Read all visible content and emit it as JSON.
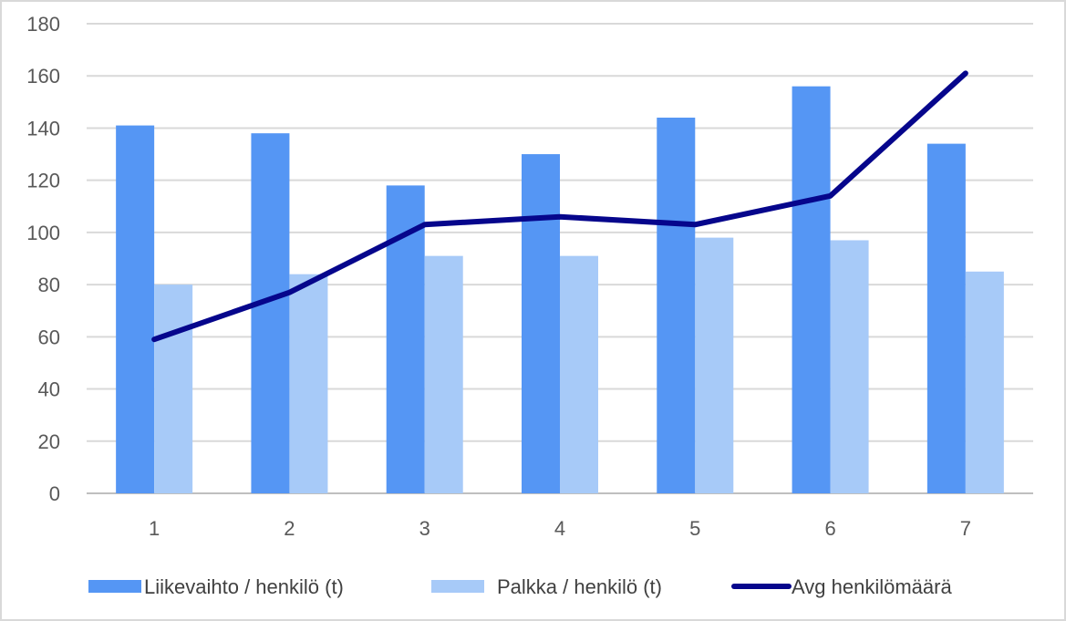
{
  "chart_data": {
    "type": "bar",
    "title": "",
    "xlabel": "",
    "ylabel": "",
    "categories": [
      "1",
      "2",
      "3",
      "4",
      "5",
      "6",
      "7"
    ],
    "ylim": [
      0,
      180
    ],
    "yticks": [
      0,
      20,
      40,
      60,
      80,
      100,
      120,
      140,
      160,
      180
    ],
    "grid": true,
    "legend_position": "bottom",
    "series": [
      {
        "name": "Liikevaihto / henkilö (t)",
        "type": "bar",
        "color": "#5596f4",
        "values": [
          141,
          138,
          118,
          130,
          144,
          156,
          134
        ]
      },
      {
        "name": "Palkka / henkilö (t)",
        "type": "bar",
        "color": "#a7caf8",
        "values": [
          80,
          84,
          91,
          91,
          98,
          97,
          85
        ]
      },
      {
        "name": "Avg henkilömäärä",
        "type": "line",
        "color": "#06068c",
        "values": [
          59,
          77,
          103,
          106,
          103,
          114,
          161
        ]
      }
    ]
  }
}
